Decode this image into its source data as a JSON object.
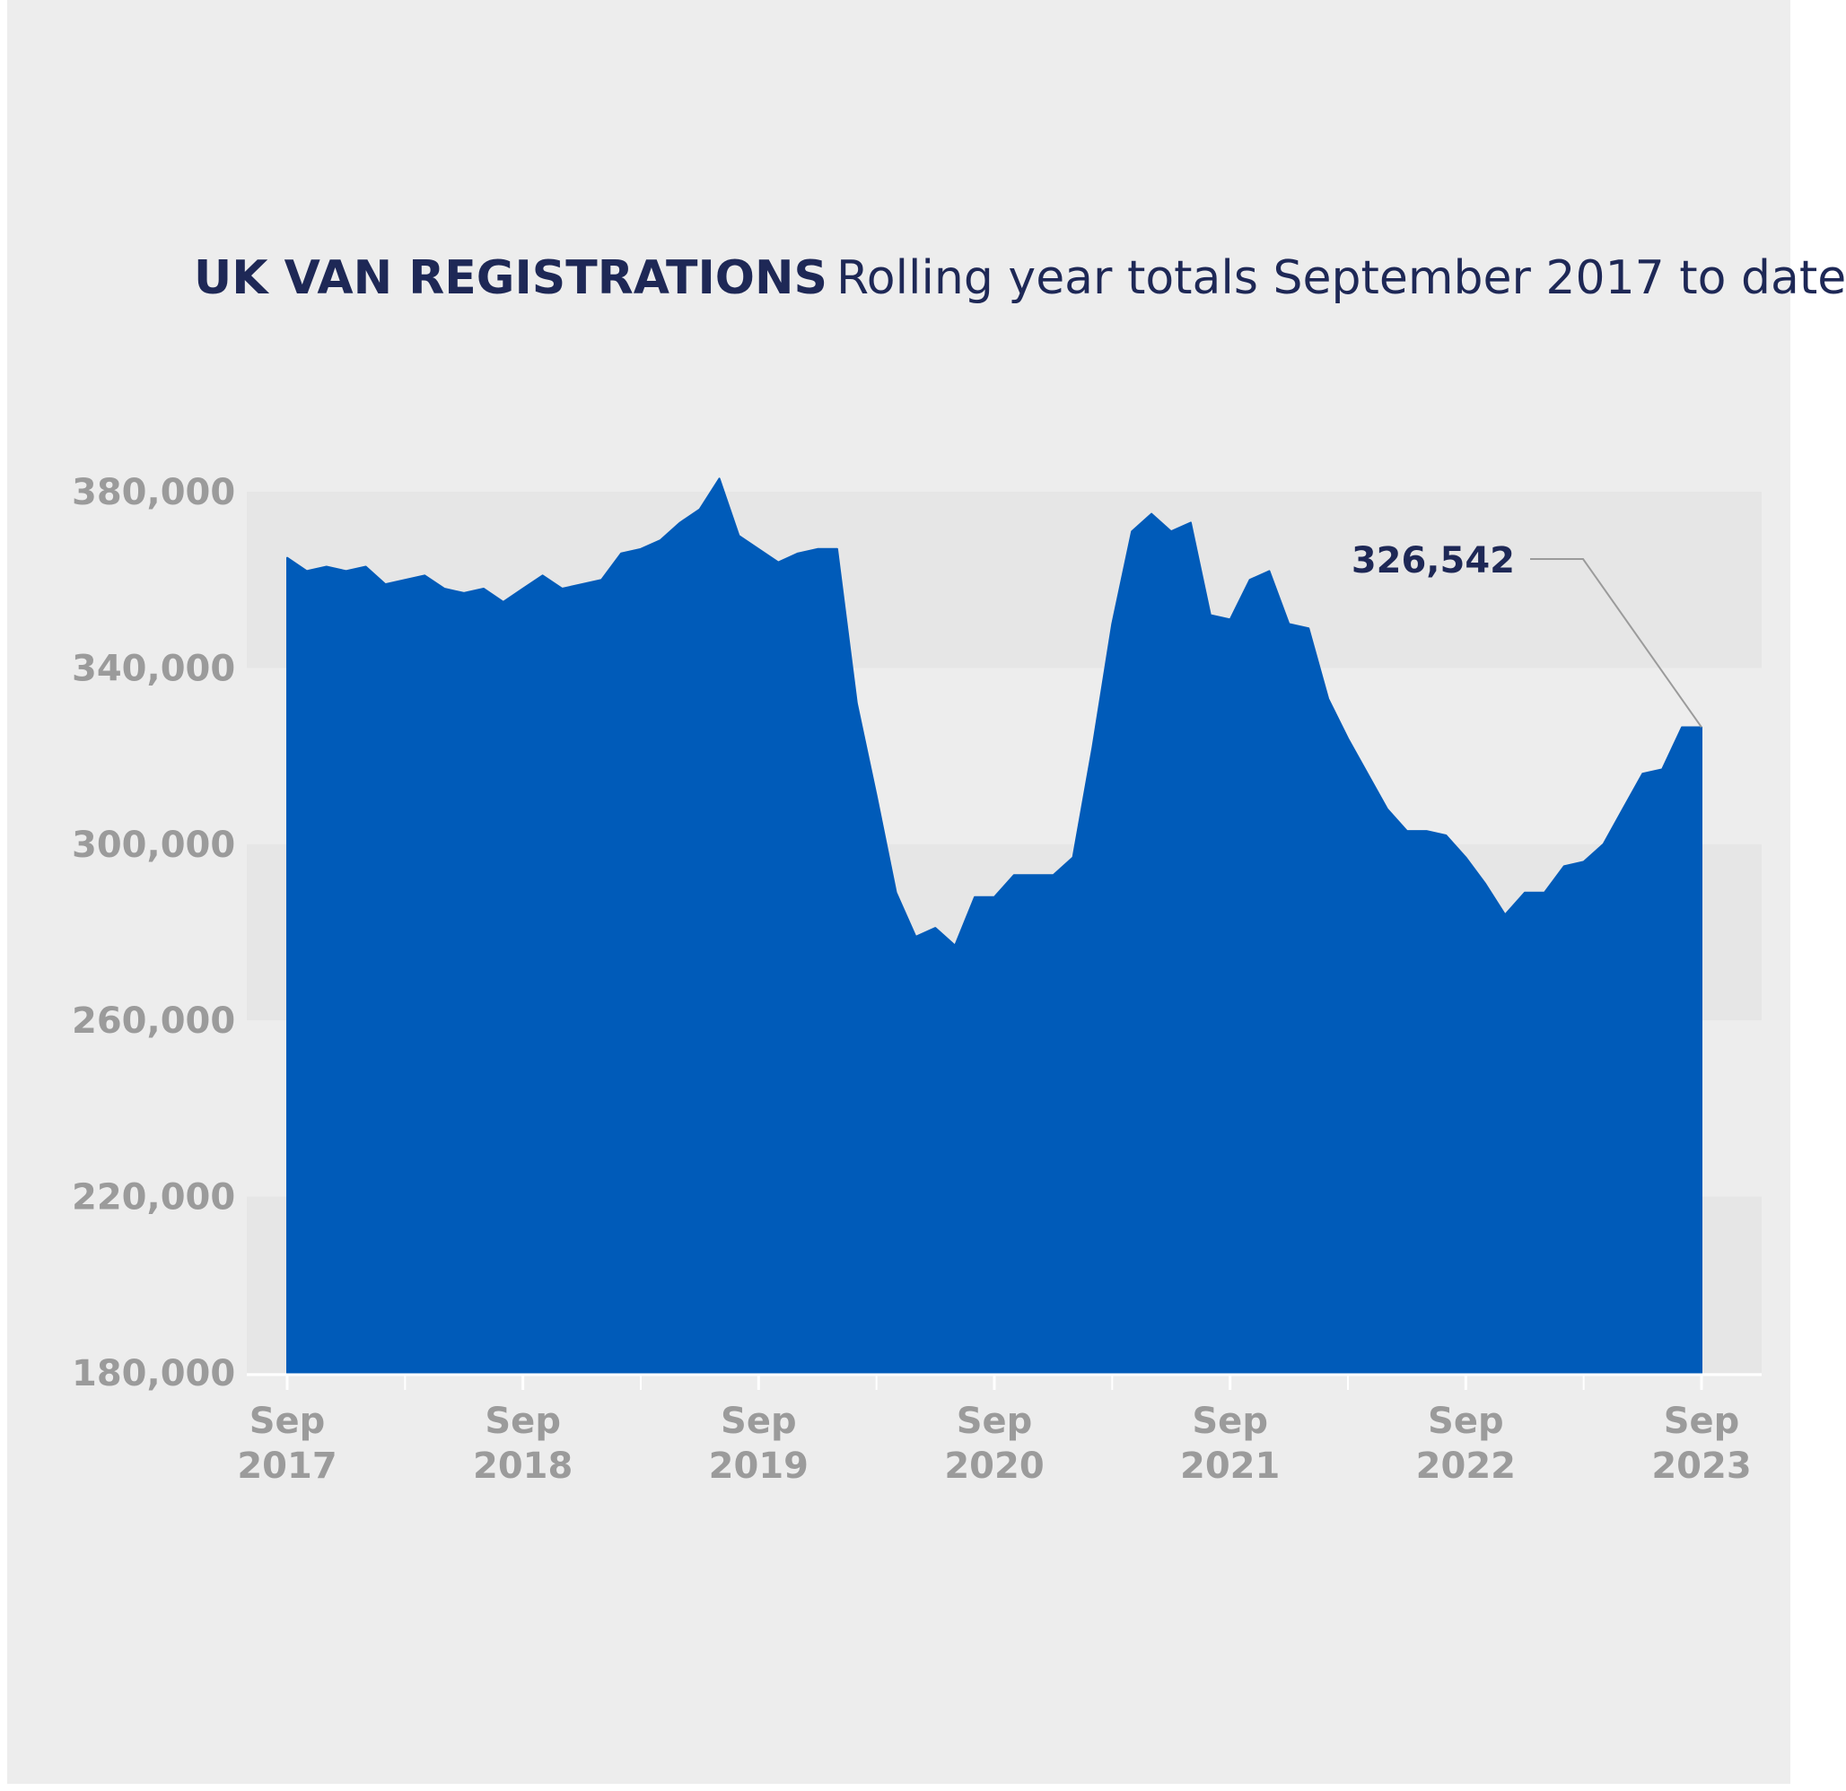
{
  "title": {
    "bold": "UK VAN REGISTRATIONS",
    "light": "Rolling year totals September 2017 to date"
  },
  "colors": {
    "background": "#ededed",
    "area": "#005bb9",
    "band": "#e6e6e6",
    "title": "#1e2856",
    "tick": "#9b9b9b",
    "callout_line": "#9b9b9b"
  },
  "chart_data": {
    "type": "area",
    "title": "UK VAN REGISTRATIONS Rolling year totals September 2017 to date",
    "xlabel": "",
    "ylabel": "",
    "ylim": [
      180000,
      380000
    ],
    "yticks": [
      180000,
      220000,
      260000,
      300000,
      340000,
      380000
    ],
    "ytick_labels": [
      "180,000",
      "220,000",
      "260,000",
      "300,000",
      "340,000",
      "380,000"
    ],
    "xticks": [
      {
        "date": "2017-09",
        "label": [
          "Sep",
          "2017"
        ]
      },
      {
        "date": "2018-09",
        "label": [
          "Sep",
          "2018"
        ]
      },
      {
        "date": "2019-09",
        "label": [
          "Sep",
          "2019"
        ]
      },
      {
        "date": "2020-09",
        "label": [
          "Sep",
          "2020"
        ]
      },
      {
        "date": "2021-09",
        "label": [
          "Sep",
          "2021"
        ]
      },
      {
        "date": "2022-09",
        "label": [
          "Sep",
          "2022"
        ]
      },
      {
        "date": "2023-09",
        "label": [
          "Sep",
          "2023"
        ]
      }
    ],
    "minor_xticks": [
      "2018-03",
      "2019-03",
      "2020-03",
      "2021-03",
      "2022-03",
      "2023-03"
    ],
    "grid": "alternating horizontal bands",
    "series": [
      {
        "dates": [
          "2017-09",
          "2017-10",
          "2017-11",
          "2017-12",
          "2018-01",
          "2018-02",
          "2018-03",
          "2018-04",
          "2018-05",
          "2018-06",
          "2018-07",
          "2018-08",
          "2018-09",
          "2018-10",
          "2018-11",
          "2018-12",
          "2019-01",
          "2019-02",
          "2019-03",
          "2019-04",
          "2019-05",
          "2019-06",
          "2019-07",
          "2019-08",
          "2019-09",
          "2019-10",
          "2019-11",
          "2019-12",
          "2020-01",
          "2020-02",
          "2020-03",
          "2020-04",
          "2020-05",
          "2020-06",
          "2020-07",
          "2020-08",
          "2020-09",
          "2020-10",
          "2020-11",
          "2020-12",
          "2021-01",
          "2021-02",
          "2021-03",
          "2021-04",
          "2021-05",
          "2021-06",
          "2021-07",
          "2021-08",
          "2021-09",
          "2021-10",
          "2021-11",
          "2021-12",
          "2022-01",
          "2022-02",
          "2022-03",
          "2022-04",
          "2022-05",
          "2022-06",
          "2022-07",
          "2022-08",
          "2022-09",
          "2022-10",
          "2022-11",
          "2022-12",
          "2023-01",
          "2023-02",
          "2023-03",
          "2023-04",
          "2023-05",
          "2023-06",
          "2023-07",
          "2023-08",
          "2023-09"
        ],
        "values": [
          365000,
          362000,
          363000,
          362000,
          363000,
          359000,
          360000,
          361000,
          358000,
          357000,
          358000,
          355000,
          358000,
          361000,
          358000,
          359000,
          360000,
          366000,
          367000,
          369000,
          373000,
          376000,
          383000,
          370000,
          367000,
          364000,
          366000,
          367000,
          367000,
          332000,
          311000,
          289000,
          279000,
          281000,
          277000,
          288000,
          288000,
          293000,
          293000,
          293000,
          297000,
          322000,
          350000,
          371000,
          375000,
          371000,
          373000,
          352000,
          351000,
          360000,
          362000,
          350000,
          349000,
          333000,
          324000,
          316000,
          308000,
          303000,
          303000,
          302000,
          297000,
          291000,
          284000,
          289000,
          289000,
          295000,
          296000,
          300000,
          308000,
          316000,
          317000,
          326542,
          326542
        ]
      }
    ],
    "annotation": {
      "label": "326,542",
      "value": 326542,
      "date": "2023-09"
    }
  }
}
